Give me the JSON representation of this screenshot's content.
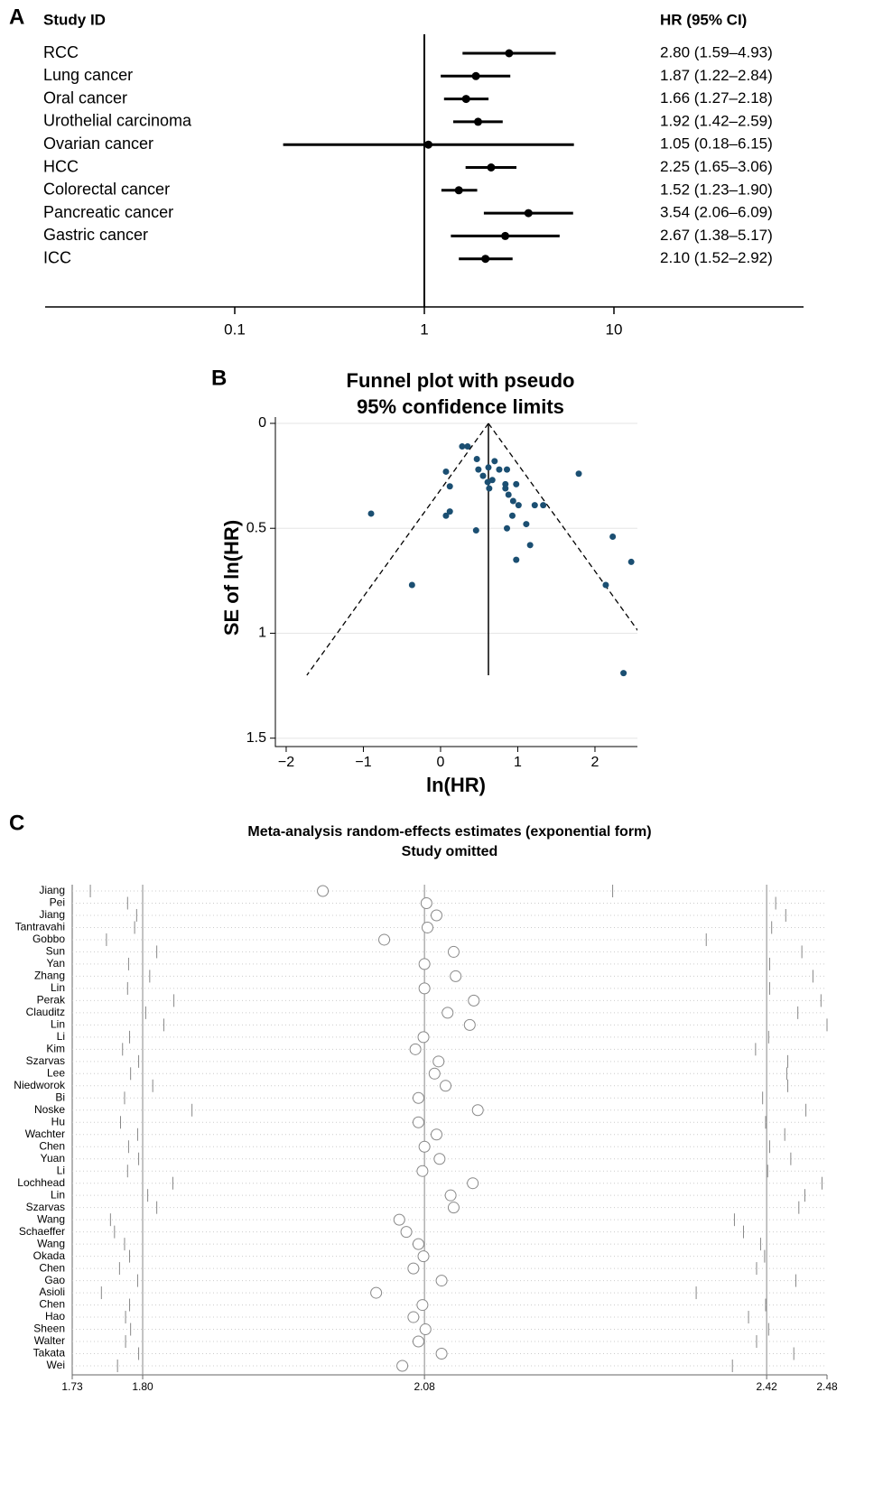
{
  "chart_data": [
    {
      "type": "forest",
      "panel": "A",
      "columns": [
        "Study ID",
        "HR (95% CI)"
      ],
      "categories": [
        "RCC",
        "Lung cancer",
        "Oral cancer",
        "Urothelial carcinoma",
        "Ovarian cancer",
        "HCC",
        "Colorectal cancer",
        "Pancreatic cancer",
        "Gastric cancer",
        "ICC"
      ],
      "values": [
        2.8,
        1.87,
        1.66,
        1.92,
        1.05,
        2.25,
        1.52,
        3.54,
        2.67,
        2.1
      ],
      "lower": [
        1.59,
        1.22,
        1.27,
        1.42,
        0.18,
        1.65,
        1.23,
        2.06,
        1.38,
        1.52
      ],
      "upper": [
        4.93,
        2.84,
        2.18,
        2.59,
        6.15,
        3.06,
        1.9,
        6.09,
        5.17,
        2.92
      ],
      "value_labels": [
        "2.80 (1.59–4.93)",
        "1.87 (1.22–2.84)",
        "1.66 (1.27–2.18)",
        "1.92 (1.42–2.59)",
        "1.05 (0.18–6.15)",
        "2.25 (1.65–3.06)",
        "1.52 (1.23–1.90)",
        "3.54 (2.06–6.09)",
        "2.67 (1.38–5.17)",
        "2.10 (1.52–2.92)"
      ],
      "xscale": "log",
      "xlim": [
        0.01,
        100
      ],
      "xticks": [
        0.1,
        1,
        10
      ],
      "refline": 1,
      "color": "#000000"
    },
    {
      "type": "funnel",
      "panel": "B",
      "title": [
        "Funnel plot with pseudo",
        "95% confidence limits"
      ],
      "xlabel": "ln(HR)",
      "ylabel": "SE of ln(HR)",
      "x": [
        0.28,
        0.35,
        0.47,
        0.7,
        0.62,
        0.49,
        0.55,
        0.07,
        0.76,
        0.86,
        1.79,
        0.67,
        0.61,
        0.84,
        0.98,
        0.63,
        0.84,
        0.88,
        0.94,
        1.01,
        1.22,
        1.33,
        0.12,
        0.93,
        0.12,
        0.07,
        -0.9,
        1.11,
        0.86,
        0.46,
        2.23,
        1.16,
        0.98,
        2.47,
        -0.37,
        2.14,
        2.37
      ],
      "values": [
        0.11,
        0.11,
        0.17,
        0.18,
        0.21,
        0.22,
        0.25,
        0.23,
        0.22,
        0.22,
        0.24,
        0.27,
        0.28,
        0.29,
        0.29,
        0.31,
        0.31,
        0.34,
        0.37,
        0.39,
        0.39,
        0.39,
        0.3,
        0.44,
        0.42,
        0.44,
        0.43,
        0.48,
        0.5,
        0.51,
        0.54,
        0.58,
        0.65,
        0.66,
        0.77,
        0.77,
        1.19
      ],
      "color": "#1b4f72",
      "xlim": [
        -2.14,
        2.55
      ],
      "ylim": [
        -0.03,
        1.54
      ],
      "y_reversed": true,
      "xticks": [
        {
          "value": -2,
          "label": "−2"
        },
        {
          "value": -1,
          "label": "−1"
        },
        0,
        1,
        2
      ],
      "yticks": [
        0,
        0.5,
        1,
        1.5
      ],
      "grid": true,
      "pooled": 0.62,
      "max_se": 1.2
    },
    {
      "type": "omitted",
      "panel": "C",
      "title": [
        "Meta-analysis random-effects estimates (exponential form)",
        "Study omitted"
      ],
      "categories": [
        "Jiang",
        "Pei",
        "Jiang",
        "Tantravahi",
        "Gobbo",
        "Sun",
        "Yan",
        "Zhang",
        "Lin",
        "Perak",
        "Clauditz",
        "Lin",
        "Li",
        "Kim",
        "Szarvas",
        "Lee",
        "Niedworok",
        "Bi",
        "Noske",
        "Hu",
        "Wachter",
        "Chen",
        "Yuan",
        "Li",
        "Lochhead",
        "Lin",
        "Szarvas",
        "Wang",
        "Schaeffer",
        "Wang",
        "Okada",
        "Chen",
        "Gao",
        "Asioli",
        "Chen",
        "Hao",
        "Sheen",
        "Walter",
        "Takata",
        "Wei"
      ],
      "values": [
        1.979,
        2.082,
        2.092,
        2.083,
        2.04,
        2.109,
        2.08,
        2.111,
        2.08,
        2.129,
        2.103,
        2.125,
        2.079,
        2.071,
        2.094,
        2.09,
        2.101,
        2.074,
        2.133,
        2.074,
        2.092,
        2.08,
        2.095,
        2.078,
        2.128,
        2.106,
        2.109,
        2.055,
        2.062,
        2.074,
        2.079,
        2.069,
        2.097,
        2.032,
        2.078,
        2.069,
        2.081,
        2.074,
        2.097,
        2.058
      ],
      "lower": [
        1.748,
        1.785,
        1.794,
        1.792,
        1.764,
        1.814,
        1.786,
        1.807,
        1.785,
        1.831,
        1.803,
        1.821,
        1.787,
        1.78,
        1.796,
        1.788,
        1.81,
        1.782,
        1.849,
        1.778,
        1.795,
        1.786,
        1.796,
        1.785,
        1.83,
        1.805,
        1.814,
        1.768,
        1.772,
        1.782,
        1.787,
        1.777,
        1.795,
        1.759,
        1.787,
        1.783,
        1.788,
        1.783,
        1.796,
        1.775
      ],
      "upper": [
        2.267,
        2.429,
        2.439,
        2.425,
        2.36,
        2.455,
        2.423,
        2.466,
        2.423,
        2.474,
        2.451,
        2.48,
        2.422,
        2.409,
        2.441,
        2.44,
        2.441,
        2.416,
        2.459,
        2.419,
        2.438,
        2.423,
        2.444,
        2.421,
        2.475,
        2.458,
        2.452,
        2.388,
        2.397,
        2.414,
        2.418,
        2.41,
        2.449,
        2.35,
        2.419,
        2.402,
        2.422,
        2.41,
        2.447,
        2.386
      ],
      "xlim": [
        1.73,
        2.48
      ],
      "xticks": [
        1.73,
        {
          "value": 1.8,
          "label": "1.80"
        },
        2.08,
        2.42,
        2.48
      ],
      "reflines": [
        1.8,
        2.08,
        2.42
      ]
    }
  ]
}
